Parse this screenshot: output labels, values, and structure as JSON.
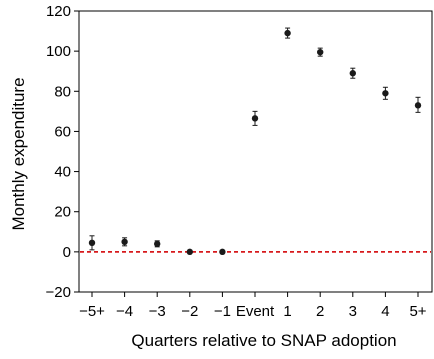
{
  "chart_data": {
    "type": "scatter",
    "title": "",
    "xlabel": "Quarters relative to SNAP adoption",
    "ylabel": "Monthly expenditure",
    "categories": [
      "−5+",
      "−4",
      "−3",
      "−2",
      "−1",
      "Event",
      "1",
      "2",
      "3",
      "4",
      "5+"
    ],
    "points": [
      {
        "x": "−5+",
        "y": 4.5,
        "ci_low": 1,
        "ci_high": 8
      },
      {
        "x": "−4",
        "y": 5,
        "ci_low": 3,
        "ci_high": 7
      },
      {
        "x": "−3",
        "y": 4,
        "ci_low": 2.5,
        "ci_high": 5.5
      },
      {
        "x": "−2",
        "y": 0,
        "ci_low": 0,
        "ci_high": 0
      },
      {
        "x": "−1",
        "y": 0,
        "ci_low": 0,
        "ci_high": 0
      },
      {
        "x": "Event",
        "y": 66.5,
        "ci_low": 63,
        "ci_high": 70
      },
      {
        "x": "1",
        "y": 109,
        "ci_low": 106.5,
        "ci_high": 111.5
      },
      {
        "x": "2",
        "y": 99.5,
        "ci_low": 97.5,
        "ci_high": 101.5
      },
      {
        "x": "3",
        "y": 89,
        "ci_low": 86.5,
        "ci_high": 91.5
      },
      {
        "x": "4",
        "y": 79,
        "ci_low": 76,
        "ci_high": 82
      },
      {
        "x": "5+",
        "y": 73,
        "ci_low": 69.5,
        "ci_high": 77
      }
    ],
    "ylim": [
      -20,
      120
    ],
    "yticks": [
      -20,
      0,
      20,
      40,
      60,
      80,
      100,
      120
    ],
    "ytick_labels": [
      "−20",
      "0",
      "20",
      "40",
      "60",
      "80",
      "100",
      "120"
    ],
    "reference_line": {
      "y": 0,
      "color": "#d7191c",
      "style": "dashed"
    },
    "grid": false,
    "legend": "none",
    "marker_color": "#1a1a1a"
  }
}
